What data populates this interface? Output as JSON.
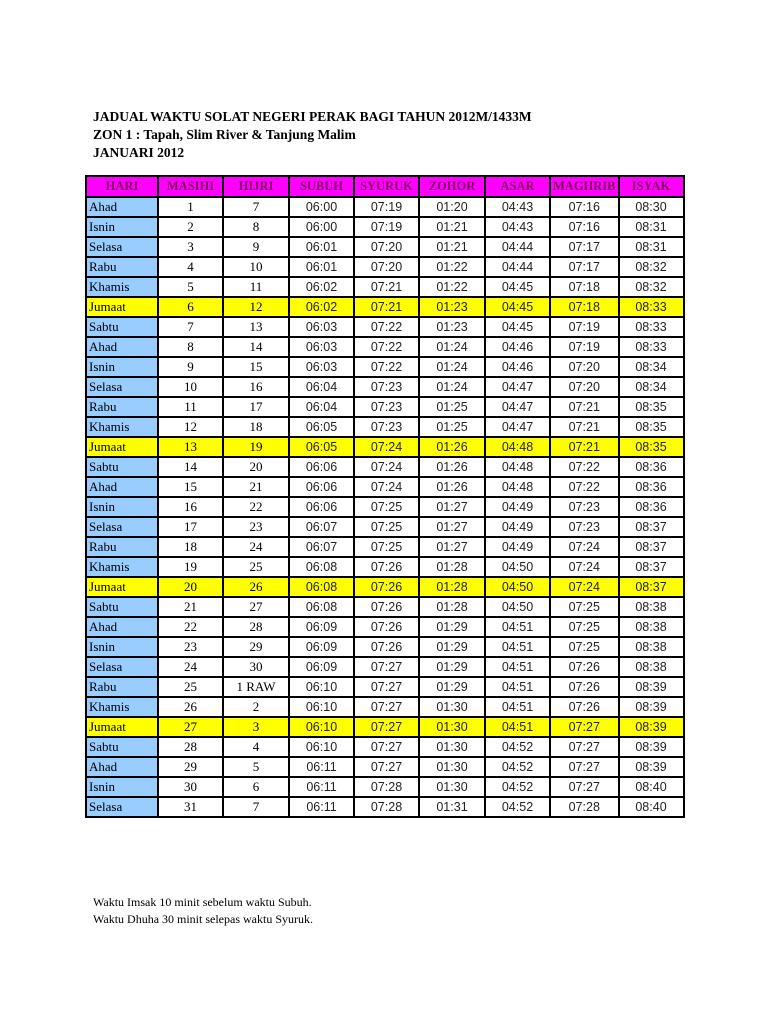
{
  "title": "JADUAL WAKTU SOLAT NEGERI PERAK BAGI TAHUN 2012M/1433M",
  "zone": "ZON 1 : Tapah, Slim River & Tanjung Malim",
  "month": "JANUARI 2012",
  "colors": {
    "header_bg": "#ff00ff",
    "day_bg": "#99ccff",
    "friday_bg": "#ffff00"
  },
  "columns": [
    "HARI",
    "MASIHI",
    "HIJRI",
    "SUBUH",
    "SYURUK",
    "ZOHOR",
    "ASAR",
    "MAGHRIB",
    "ISYAK"
  ],
  "rows": [
    [
      "Ahad",
      "1",
      "7",
      "06:00",
      "07:19",
      "01:20",
      "04:43",
      "07:16",
      "08:30"
    ],
    [
      "Isnin",
      "2",
      "8",
      "06:00",
      "07:19",
      "01:21",
      "04:43",
      "07:16",
      "08:31"
    ],
    [
      "Selasa",
      "3",
      "9",
      "06:01",
      "07:20",
      "01:21",
      "04:44",
      "07:17",
      "08:31"
    ],
    [
      "Rabu",
      "4",
      "10",
      "06:01",
      "07:20",
      "01:22",
      "04:44",
      "07:17",
      "08:32"
    ],
    [
      "Khamis",
      "5",
      "11",
      "06:02",
      "07:21",
      "01:22",
      "04:45",
      "07:18",
      "08:32"
    ],
    [
      "Jumaat",
      "6",
      "12",
      "06:02",
      "07:21",
      "01:23",
      "04:45",
      "07:18",
      "08:33"
    ],
    [
      "Sabtu",
      "7",
      "13",
      "06:03",
      "07:22",
      "01:23",
      "04:45",
      "07:19",
      "08:33"
    ],
    [
      "Ahad",
      "8",
      "14",
      "06:03",
      "07:22",
      "01:24",
      "04:46",
      "07:19",
      "08:33"
    ],
    [
      "Isnin",
      "9",
      "15",
      "06:03",
      "07:22",
      "01:24",
      "04:46",
      "07:20",
      "08:34"
    ],
    [
      "Selasa",
      "10",
      "16",
      "06:04",
      "07:23",
      "01:24",
      "04:47",
      "07:20",
      "08:34"
    ],
    [
      "Rabu",
      "11",
      "17",
      "06:04",
      "07:23",
      "01:25",
      "04:47",
      "07:21",
      "08:35"
    ],
    [
      "Khamis",
      "12",
      "18",
      "06:05",
      "07:23",
      "01:25",
      "04:47",
      "07:21",
      "08:35"
    ],
    [
      "Jumaat",
      "13",
      "19",
      "06:05",
      "07:24",
      "01:26",
      "04:48",
      "07:21",
      "08:35"
    ],
    [
      "Sabtu",
      "14",
      "20",
      "06:06",
      "07:24",
      "01:26",
      "04:48",
      "07:22",
      "08:36"
    ],
    [
      "Ahad",
      "15",
      "21",
      "06:06",
      "07:24",
      "01:26",
      "04:48",
      "07:22",
      "08:36"
    ],
    [
      "Isnin",
      "16",
      "22",
      "06:06",
      "07:25",
      "01:27",
      "04:49",
      "07:23",
      "08:36"
    ],
    [
      "Selasa",
      "17",
      "23",
      "06:07",
      "07:25",
      "01:27",
      "04:49",
      "07:23",
      "08:37"
    ],
    [
      "Rabu",
      "18",
      "24",
      "06:07",
      "07:25",
      "01:27",
      "04:49",
      "07:24",
      "08:37"
    ],
    [
      "Khamis",
      "19",
      "25",
      "06:08",
      "07:26",
      "01:28",
      "04:50",
      "07:24",
      "08:37"
    ],
    [
      "Jumaat",
      "20",
      "26",
      "06:08",
      "07:26",
      "01:28",
      "04:50",
      "07:24",
      "08:37"
    ],
    [
      "Sabtu",
      "21",
      "27",
      "06:08",
      "07:26",
      "01:28",
      "04:50",
      "07:25",
      "08:38"
    ],
    [
      "Ahad",
      "22",
      "28",
      "06:09",
      "07:26",
      "01:29",
      "04:51",
      "07:25",
      "08:38"
    ],
    [
      "Isnin",
      "23",
      "29",
      "06:09",
      "07:26",
      "01:29",
      "04:51",
      "07:25",
      "08:38"
    ],
    [
      "Selasa",
      "24",
      "30",
      "06:09",
      "07:27",
      "01:29",
      "04:51",
      "07:26",
      "08:38"
    ],
    [
      "Rabu",
      "25",
      "1 RAW",
      "06:10",
      "07:27",
      "01:29",
      "04:51",
      "07:26",
      "08:39"
    ],
    [
      "Khamis",
      "26",
      "2",
      "06:10",
      "07:27",
      "01:30",
      "04:51",
      "07:26",
      "08:39"
    ],
    [
      "Jumaat",
      "27",
      "3",
      "06:10",
      "07:27",
      "01:30",
      "04:51",
      "07:27",
      "08:39"
    ],
    [
      "Sabtu",
      "28",
      "4",
      "06:10",
      "07:27",
      "01:30",
      "04:52",
      "07:27",
      "08:39"
    ],
    [
      "Ahad",
      "29",
      "5",
      "06:11",
      "07:27",
      "01:30",
      "04:52",
      "07:27",
      "08:39"
    ],
    [
      "Isnin",
      "30",
      "6",
      "06:11",
      "07:28",
      "01:30",
      "04:52",
      "07:27",
      "08:40"
    ],
    [
      "Selasa",
      "31",
      "7",
      "06:11",
      "07:28",
      "01:31",
      "04:52",
      "07:28",
      "08:40"
    ]
  ],
  "notes": [
    "Waktu Imsak 10 minit sebelum waktu Subuh.",
    "Waktu Dhuha 30 minit selepas waktu Syuruk."
  ]
}
